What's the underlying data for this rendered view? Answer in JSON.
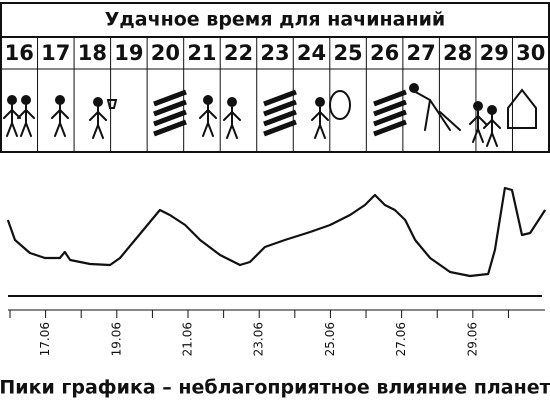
{
  "title": "Удачное время для начинаний",
  "days": [
    "16",
    "17",
    "18",
    "19",
    "20",
    "21",
    "22",
    "23",
    "24",
    "25",
    "26",
    "27",
    "28",
    "29",
    "30"
  ],
  "caption": "Пики графика – неблагоприятное влияние планет",
  "chart_data": {
    "type": "line",
    "color": "#111111",
    "x": [
      15.94,
      16.14,
      16.56,
      16.98,
      17.4,
      17.54,
      17.69,
      18.25,
      18.81,
      19.09,
      19.51,
      19.79,
      20.21,
      20.49,
      20.92,
      21.34,
      21.9,
      22.46,
      22.74,
      23.16,
      23.72,
      24.43,
      24.99,
      25.55,
      25.97,
      26.25,
      26.53,
      26.81,
      27.1,
      27.38,
      27.8,
      28.36,
      28.92,
      29.43,
      29.62,
      29.9,
      30.1,
      30.38,
      30.61,
      31.03
    ],
    "values": [
      80,
      60,
      47,
      42,
      42,
      48,
      40,
      36,
      35,
      42,
      60,
      72,
      90,
      85,
      75,
      60,
      45,
      35,
      38,
      53,
      60,
      68,
      75,
      85,
      95,
      105,
      95,
      90,
      80,
      60,
      42,
      28,
      24,
      26,
      50,
      112,
      110,
      65,
      67,
      90
    ],
    "xlim": [
      15.9,
      31.1
    ],
    "ylim": [
      0,
      130
    ],
    "xticks": [
      {
        "value": 17,
        "label": "17.06"
      },
      {
        "value": 19,
        "label": "19.06"
      },
      {
        "value": 21,
        "label": "21.06"
      },
      {
        "value": 23,
        "label": "23.06"
      },
      {
        "value": 25,
        "label": "25.06"
      },
      {
        "value": 27,
        "label": "27.06"
      },
      {
        "value": 29,
        "label": "29.06"
      }
    ],
    "xminor": [
      16,
      18,
      20,
      22,
      24,
      26,
      28,
      30
    ]
  }
}
